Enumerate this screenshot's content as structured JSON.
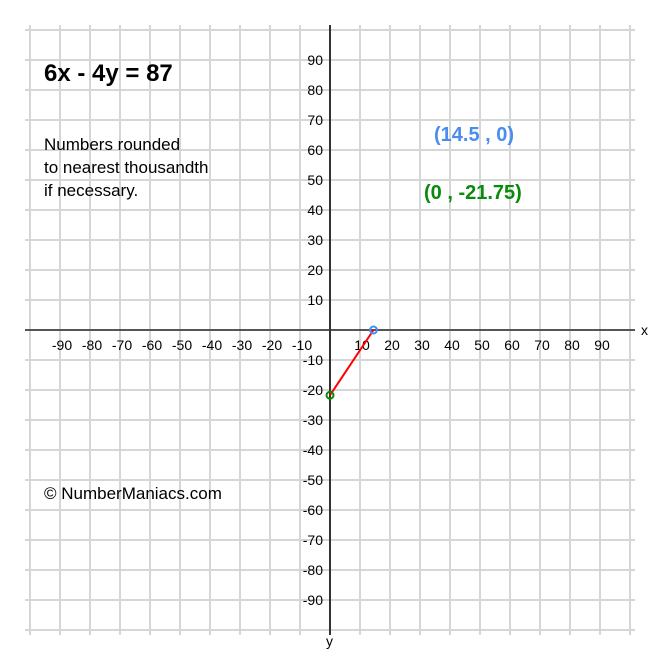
{
  "title": "6x - 4y = 87",
  "note": "Numbers rounded\nto nearest thousandth\nif necessary.",
  "copyright": "© NumberManiacs.com",
  "chart_data": {
    "type": "line",
    "equation": "6x - 4y = 87",
    "xlabel": "x",
    "ylabel": "y",
    "xlim": [
      -100,
      100
    ],
    "ylim": [
      -100,
      100
    ],
    "grid": true,
    "x_ticks": [
      -90,
      -80,
      -70,
      -60,
      -50,
      -40,
      -30,
      -20,
      -10,
      10,
      20,
      30,
      40,
      50,
      60,
      70,
      80,
      90
    ],
    "y_ticks": [
      90,
      80,
      70,
      60,
      50,
      40,
      30,
      20,
      10,
      -10,
      -20,
      -30,
      -40,
      -50,
      -60,
      -70,
      -80,
      -90
    ],
    "segment": {
      "color": "#ff0000",
      "points": [
        [
          14.5,
          0
        ],
        [
          0,
          -21.75
        ]
      ]
    },
    "points": [
      {
        "x": 14.5,
        "y": 0,
        "label": "(14.5 , 0)",
        "color": "#4a8cf0"
      },
      {
        "x": 0,
        "y": -21.75,
        "label": "(0 , -21.75)",
        "color": "#0a8a0a"
      }
    ]
  }
}
